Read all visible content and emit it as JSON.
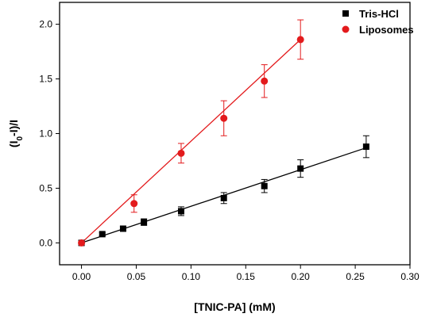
{
  "chart_data": {
    "type": "scatter",
    "xlabel": "[TNIC-PA] (mM)",
    "ylabel": "(I0-I)/I",
    "ylabel_parts": {
      "pre": "(I",
      "sub": "0",
      "post": "-I)/I"
    },
    "xlim": [
      -0.02,
      0.3
    ],
    "ylim": [
      -0.2,
      2.2
    ],
    "x_ticks": [
      "0.00",
      "0.05",
      "0.10",
      "0.15",
      "0.20",
      "0.25",
      "0.30"
    ],
    "y_ticks": [
      "0.0",
      "0.5",
      "1.0",
      "1.5",
      "2.0"
    ],
    "grid": false,
    "legend_position": "top-right",
    "series": [
      {
        "name": "Tris-HCl",
        "color": "#000000",
        "marker": "square",
        "x": [
          0.0,
          0.019,
          0.038,
          0.057,
          0.091,
          0.13,
          0.167,
          0.2,
          0.26
        ],
        "y": [
          0.0,
          0.08,
          0.13,
          0.19,
          0.29,
          0.41,
          0.52,
          0.68,
          0.88
        ],
        "err": [
          0.0,
          0.015,
          0.02,
          0.03,
          0.04,
          0.05,
          0.06,
          0.08,
          0.1
        ],
        "fit": [
          [
            0.0,
            0.0
          ],
          [
            0.26,
            0.87
          ]
        ]
      },
      {
        "name": "Liposomes",
        "color": "#e31a1c",
        "marker": "circle",
        "x": [
          0.0,
          0.048,
          0.091,
          0.13,
          0.167,
          0.2
        ],
        "y": [
          0.0,
          0.36,
          0.82,
          1.14,
          1.48,
          1.86
        ],
        "err": [
          0.0,
          0.08,
          0.09,
          0.16,
          0.15,
          0.18
        ],
        "fit": [
          [
            0.0,
            0.0
          ],
          [
            0.2,
            1.86
          ]
        ]
      }
    ]
  }
}
